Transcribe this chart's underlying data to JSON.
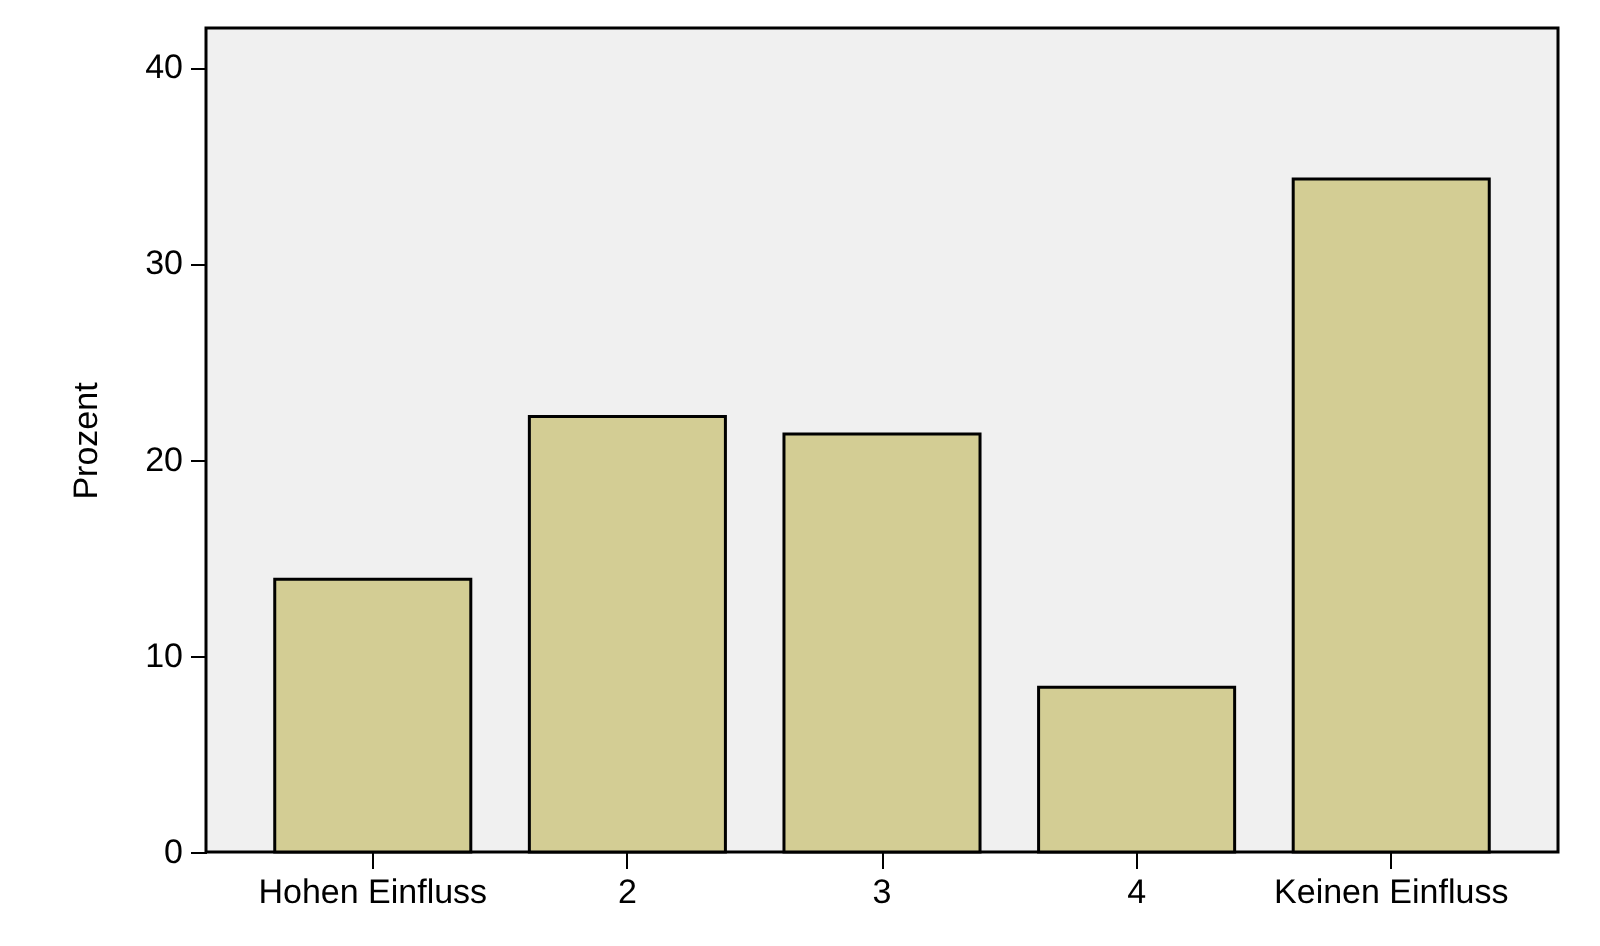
{
  "chart_data": {
    "type": "bar",
    "ylabel": "Prozent",
    "categories": [
      "Hohen Einfluss",
      "2",
      "3",
      "4",
      "Keinen Einfluss"
    ],
    "values": [
      13.9,
      22.2,
      21.3,
      8.4,
      34.3
    ],
    "color": "#d3cd94",
    "ylim": [
      0,
      42
    ],
    "yticks": [
      0,
      10,
      20,
      30,
      40
    ],
    "grid": false
  }
}
